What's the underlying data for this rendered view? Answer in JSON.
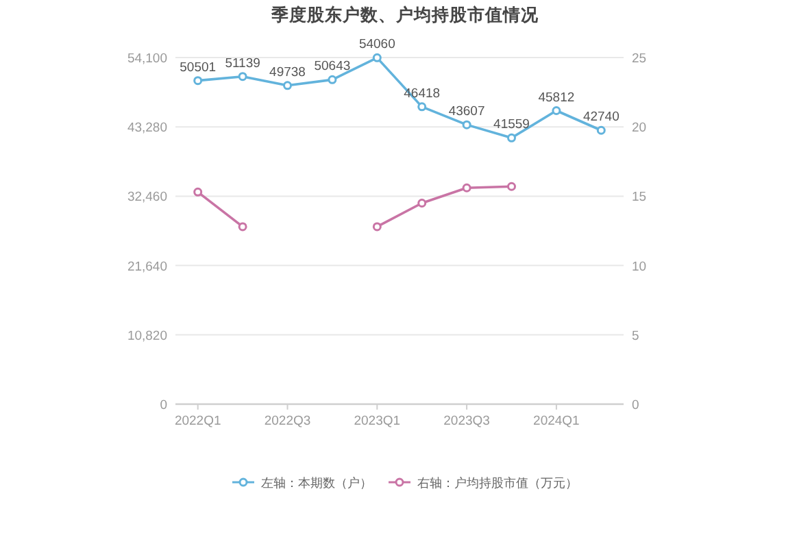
{
  "chart_data": {
    "type": "line",
    "title": "季度股东户数、户均持股市值情况",
    "categories": [
      "2022Q1",
      null,
      "2022Q3",
      null,
      "2023Q1",
      null,
      "2023Q3",
      null,
      "2024Q1",
      null
    ],
    "series": [
      {
        "name": "左轴：本期数（户）",
        "color": "#62b3dc",
        "values": [
          50501,
          51139,
          49738,
          50643,
          54060,
          46418,
          43607,
          41559,
          45812,
          42740
        ],
        "value_labels": [
          "50501",
          "51139",
          "49738",
          "50643",
          "54060",
          "46418",
          "43607",
          "41559",
          "45812",
          "42740"
        ]
      },
      {
        "name": "右轴：户均持股市值（万元）",
        "color": "#c974a5",
        "axis": "y2",
        "values": [
          15.3,
          12.8,
          null,
          null,
          12.8,
          14.5,
          15.6,
          15.7,
          null,
          null
        ]
      }
    ],
    "ylim": [
      0,
      54100
    ],
    "yticks": [
      0,
      {
        "value": 10820,
        "label": "10,820"
      },
      {
        "value": 21640,
        "label": "21,640"
      },
      {
        "value": 32460,
        "label": "32,460"
      },
      {
        "value": 43280,
        "label": "43,280"
      },
      {
        "value": 54100,
        "label": "54,100"
      }
    ],
    "y2lim": [
      0,
      25
    ],
    "y2ticks": [
      0,
      5,
      10,
      15,
      20,
      25
    ],
    "grid": "y",
    "legend": "bottom",
    "marker": "circle"
  }
}
